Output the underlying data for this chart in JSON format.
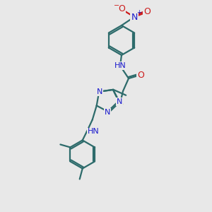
{
  "bg_color": "#e8e8e8",
  "bond_color": "#2d6b6b",
  "bond_width": 1.6,
  "atom_colors": {
    "N": "#1a1acc",
    "O": "#cc1a1a",
    "S": "#aaaa00",
    "C": "#2d6b6b",
    "H": "#2d6b6b"
  },
  "font_size": 8.0
}
